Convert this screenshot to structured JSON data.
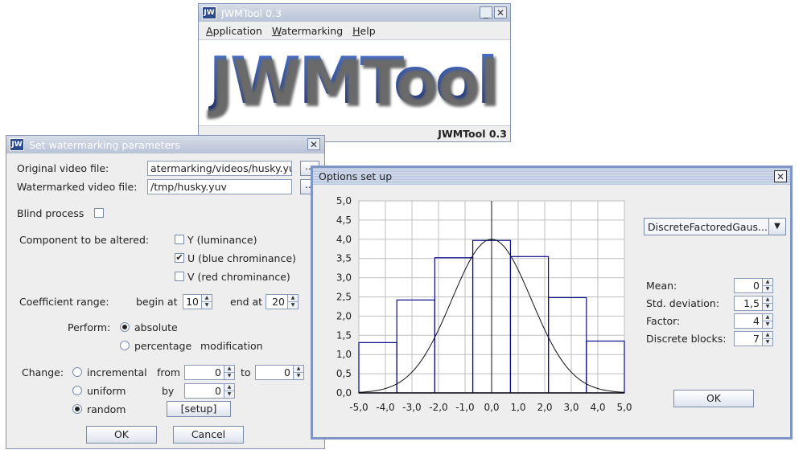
{
  "main_window": {
    "title": "JWMTool 0.3",
    "menu": [
      {
        "key": "A",
        "rest": "pplication"
      },
      {
        "key": "W",
        "rest": "atermarking"
      },
      {
        "key": "H",
        "rest": "elp"
      }
    ],
    "logo": "JWMTool",
    "status": "JWMTool 0.3"
  },
  "params_dialog": {
    "title": "Set watermarking parameters",
    "original_label": "Original video file:",
    "original_value": "atermarking/videos/husky.yuv",
    "watermarked_label": "Watermarked video file:",
    "watermarked_value": "/tmp/husky.yuv",
    "browse": "...",
    "blind_label": "Blind process",
    "component_label": "Component to be altered:",
    "comp_y": "Y (luminance)",
    "comp_u": "U (blue chrominance)",
    "comp_v": "V (red chrominance)",
    "coef_label": "Coefficient range:",
    "begin_label": "begin at",
    "begin_value": "10",
    "end_label": "end at",
    "end_value": "20",
    "perform_label": "Perform:",
    "perform_absolute": "absolute",
    "perform_percentage": "percentage",
    "modification": "modification",
    "change_label": "Change:",
    "change_incremental": "incremental",
    "from_label": "from",
    "from_value": "0",
    "to_label": "to",
    "to_value": "0",
    "change_uniform": "uniform",
    "by_label": "by",
    "by_value": "0",
    "change_random": "random",
    "setup_button": "[setup]",
    "ok": "OK",
    "cancel": "Cancel"
  },
  "options_dialog": {
    "title": "Options set up",
    "distribution": "DiscreteFactoredGaus...",
    "mean_label": "Mean:",
    "mean_value": "0",
    "std_label": "Std. deviation:",
    "std_value": "1,5",
    "factor_label": "Factor:",
    "factor_value": "4",
    "blocks_label": "Discrete blocks:",
    "blocks_value": "7",
    "ok": "OK"
  },
  "chart_data": {
    "type": "bar",
    "x_ticks": [
      "-5,0",
      "-4,0",
      "-3,0",
      "-2,0",
      "-1,0",
      "0,0",
      "1,0",
      "2,0",
      "3,0",
      "4,0",
      "5,0"
    ],
    "y_ticks": [
      "0,0",
      "0,5",
      "1,0",
      "1,5",
      "2,0",
      "2,5",
      "3,0",
      "3,5",
      "4,0",
      "4,5",
      "5,0"
    ],
    "xlim": [
      -5,
      5
    ],
    "ylim": [
      0,
      5
    ],
    "grid": true,
    "bars": [
      {
        "x0": -5.0,
        "x1": -3.57,
        "value": 1.31
      },
      {
        "x0": -3.57,
        "x1": -2.14,
        "value": 2.42
      },
      {
        "x0": -2.14,
        "x1": -0.71,
        "value": 3.52
      },
      {
        "x0": -0.71,
        "x1": 0.71,
        "value": 3.97
      },
      {
        "x0": 0.71,
        "x1": 2.14,
        "value": 3.55
      },
      {
        "x0": 2.14,
        "x1": 3.57,
        "value": 2.48
      },
      {
        "x0": 3.57,
        "x1": 5.0,
        "value": 1.35
      }
    ],
    "curve": {
      "mean": 0,
      "std": 1.5,
      "factor": 4
    },
    "colors": {
      "bars": "#0a0a8c",
      "curve": "#111111",
      "grid": "#bfbfbf"
    }
  }
}
